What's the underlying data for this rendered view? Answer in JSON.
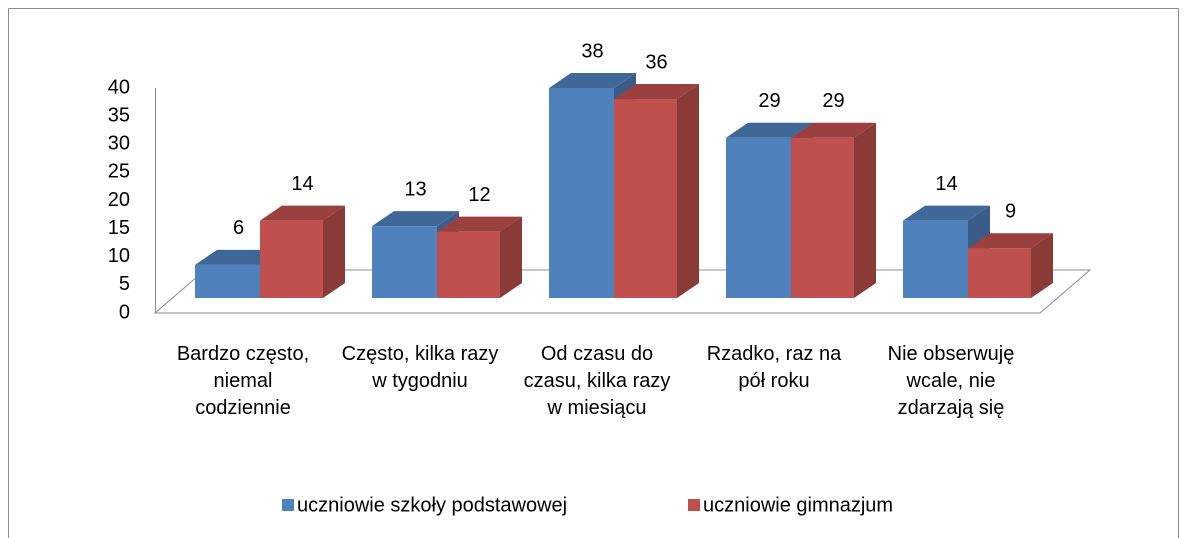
{
  "chart_data": {
    "type": "bar3d",
    "categories": [
      "Bardzo często, niemal codziennie",
      "Często, kilka razy w tygodniu",
      "Od czasu do czasu, kilka razy w miesiącu",
      "Rzadko, raz na pół roku",
      "Nie obserwuję wcale, nie zdarzają się"
    ],
    "series": [
      {
        "name": "uczniowie szkoły podstawowej",
        "color": "#4f81bd",
        "values": [
          6,
          13,
          38,
          29,
          14
        ]
      },
      {
        "name": "uczniowie gimnazjum",
        "color": "#c0504d",
        "values": [
          14,
          12,
          36,
          29,
          9
        ]
      }
    ],
    "ylim": [
      0,
      40
    ],
    "yticks": [
      0,
      5,
      10,
      15,
      20,
      25,
      30,
      35,
      40
    ],
    "legend": "bottom"
  }
}
